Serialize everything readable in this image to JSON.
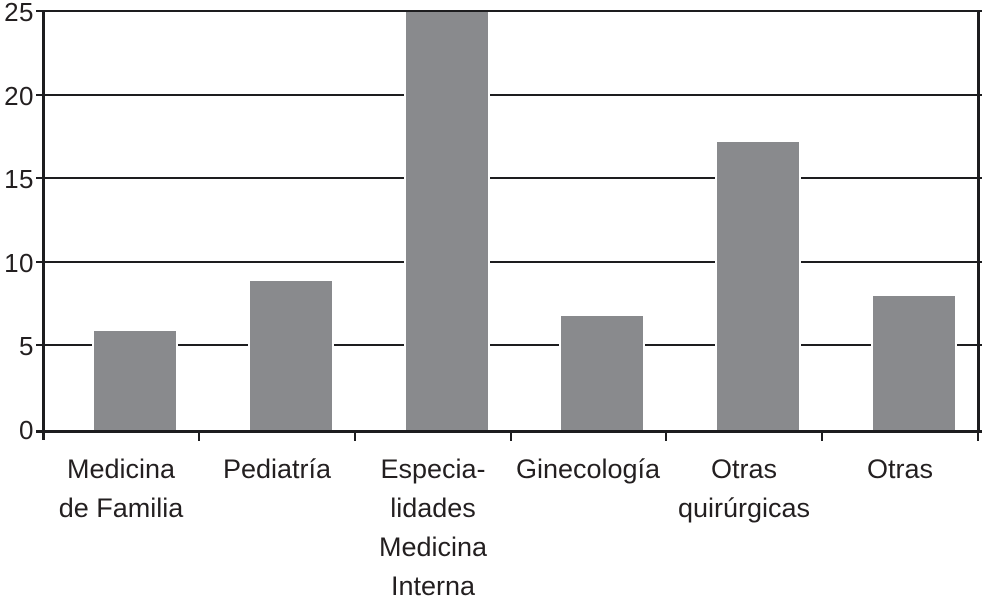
{
  "chart_data": {
    "type": "bar",
    "title": "",
    "xlabel": "",
    "ylabel": "",
    "categories": [
      "Medicina\nde Familia",
      "Pediatría",
      "Especia-\nlidades\nMedicina\nInterna",
      "Ginecología",
      "Otras\nquirúrgicas",
      "Otras"
    ],
    "values": [
      5.9,
      8.9,
      25,
      6.8,
      17.2,
      8
    ],
    "yticks": [
      0,
      5,
      10,
      15,
      20,
      25
    ],
    "ylim": [
      0,
      25
    ],
    "grid": true,
    "legend": false,
    "bar_color": "#898a8d",
    "line_color": "#1d1d1f",
    "text_color": "#231f20",
    "background_color": "#ffffff"
  }
}
